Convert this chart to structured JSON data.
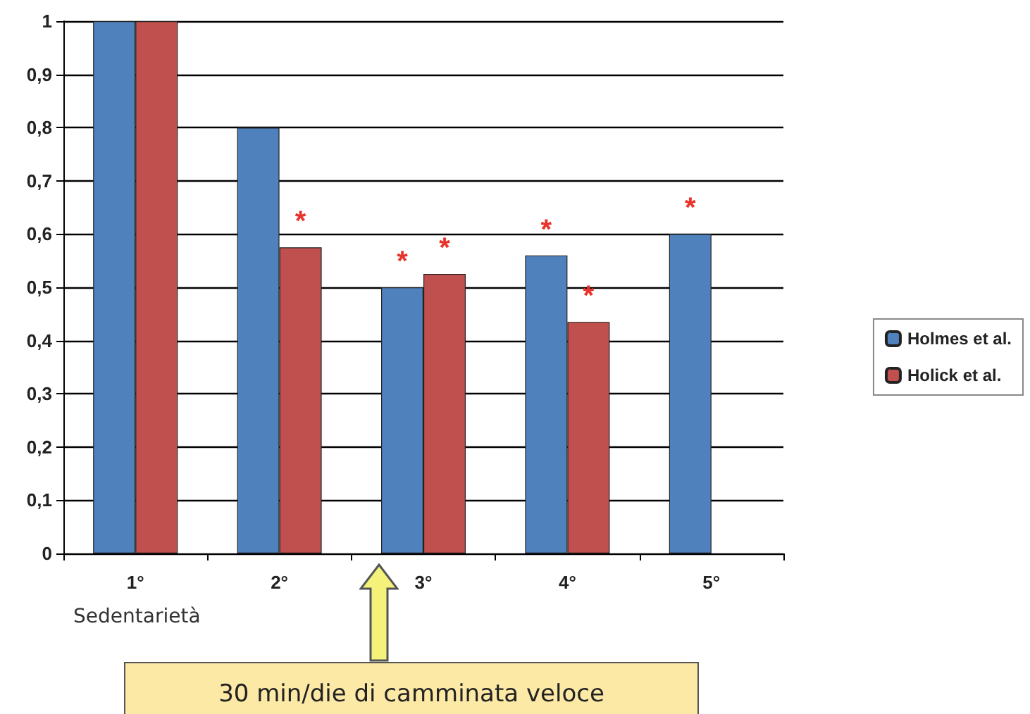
{
  "chart_data": {
    "type": "bar",
    "categories": [
      "1°",
      "2°",
      "3°",
      "4°",
      "5°"
    ],
    "series": [
      {
        "name": "Holmes et al.",
        "color": "#4f81bd",
        "values": [
          1,
          0.8,
          0.5,
          0.56,
          0.6
        ],
        "value_labels": [
          null,
          null,
          "*",
          "*",
          "*"
        ]
      },
      {
        "name": "Holick et al.",
        "color": "#c0504d",
        "values": [
          1,
          0.575,
          0.525,
          0.435,
          null
        ],
        "value_labels": [
          null,
          "*",
          "*",
          "*",
          null
        ]
      }
    ],
    "ylim": [
      0,
      1
    ],
    "yticks": [
      {
        "value": 0,
        "label": "0"
      },
      {
        "value": 0.1,
        "label": "0,1"
      },
      {
        "value": 0.2,
        "label": "0,2"
      },
      {
        "value": 0.3,
        "label": "0,3"
      },
      {
        "value": 0.4,
        "label": "0,4"
      },
      {
        "value": 0.5,
        "label": "0,5"
      },
      {
        "value": 0.6,
        "label": "0,6"
      },
      {
        "value": 0.7,
        "label": "0,7"
      },
      {
        "value": 0.8,
        "label": "0,8"
      },
      {
        "value": 0.9,
        "label": "0,9"
      },
      {
        "value": 1,
        "label": "1"
      }
    ],
    "grid": "y",
    "legend": "right",
    "annotations": [
      "Sedentarietà",
      "30 min/die di camminata veloce"
    ]
  }
}
